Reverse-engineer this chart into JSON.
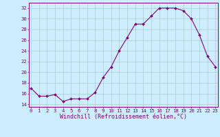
{
  "x": [
    0,
    1,
    2,
    3,
    4,
    5,
    6,
    7,
    8,
    9,
    10,
    11,
    12,
    13,
    14,
    15,
    16,
    17,
    18,
    19,
    20,
    21,
    22,
    23
  ],
  "y": [
    17,
    15.5,
    15.5,
    15.8,
    14.5,
    15,
    15,
    15,
    16.2,
    19,
    21,
    24,
    26.5,
    29,
    29,
    30.5,
    32,
    32,
    32,
    31.5,
    30,
    27,
    23,
    21
  ],
  "line_color": "#800080",
  "marker_color": "#800080",
  "bg_color": "#cceeff",
  "grid_color": "#aacccc",
  "xlabel": "Windchill (Refroidissement éolien,°C)",
  "yticks": [
    14,
    16,
    18,
    20,
    22,
    24,
    26,
    28,
    30,
    32
  ],
  "xticks": [
    0,
    1,
    2,
    3,
    4,
    5,
    6,
    7,
    8,
    9,
    10,
    11,
    12,
    13,
    14,
    15,
    16,
    17,
    18,
    19,
    20,
    21,
    22,
    23
  ],
  "ylim": [
    13.5,
    33.0
  ],
  "xlim": [
    -0.3,
    23.3
  ],
  "label_fontsize": 6.0,
  "tick_fontsize": 5.2,
  "spine_color": "#800080"
}
